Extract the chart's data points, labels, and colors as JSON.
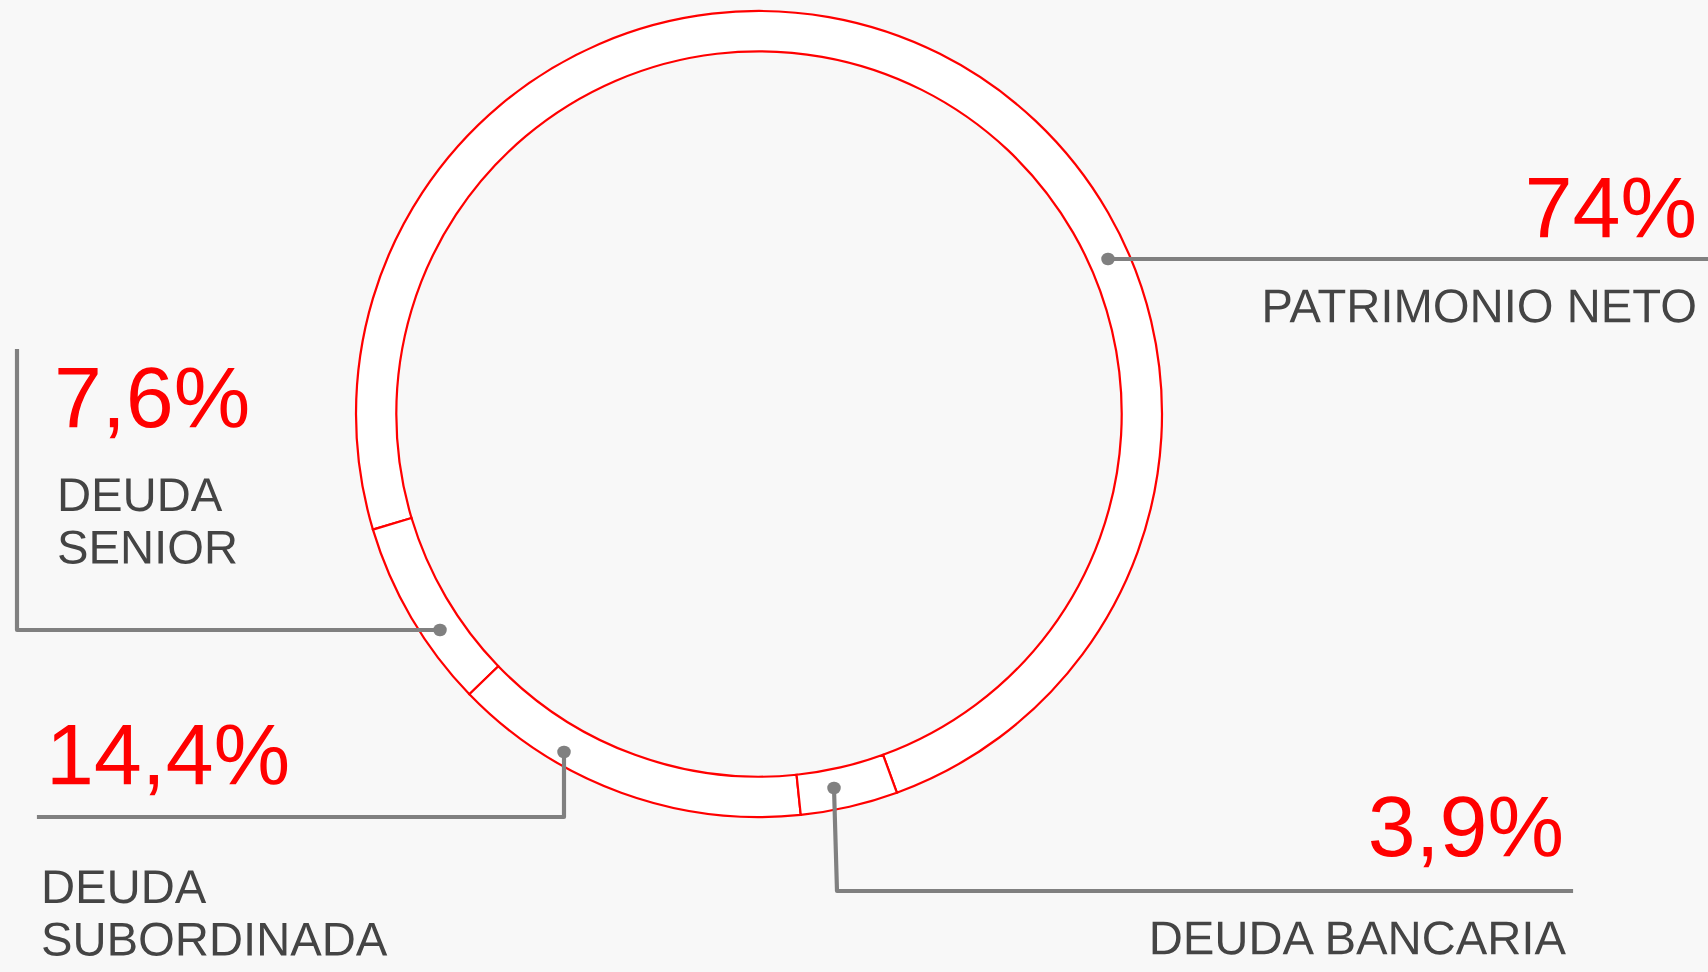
{
  "chart_data": {
    "type": "donut",
    "categories": [
      "PATRIMONIO NETO",
      "DEUDA\nSENIOR",
      "DEUDA\nSUBORDINADA",
      "DEUDA BANCARIA"
    ],
    "values": [
      74,
      7.6,
      14.4,
      3.9
    ],
    "value_labels": [
      "74%",
      "7,6%",
      "14,4%",
      "3,9%"
    ],
    "colors": [
      "#ffffff",
      "#ffffff",
      "#ffffff",
      "#ffffff"
    ]
  }
}
